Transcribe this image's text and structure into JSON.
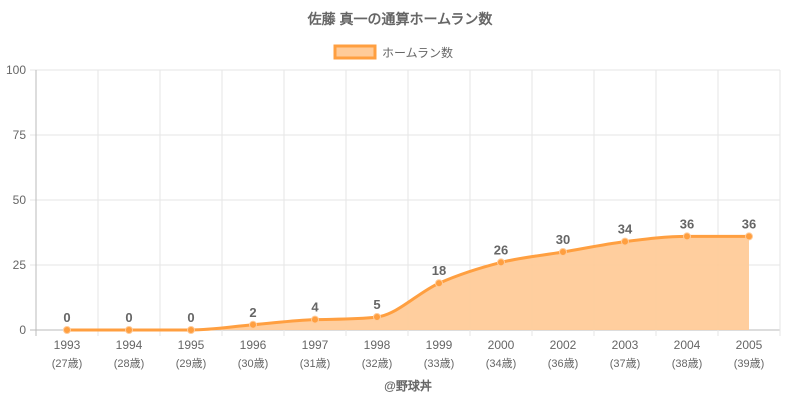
{
  "chart_data": {
    "type": "line",
    "title": "佐藤 真一の通算ホームラン数",
    "legend": {
      "label": "ホームラン数",
      "placement": "top"
    },
    "categories": [
      "1993",
      "1994",
      "1995",
      "1996",
      "1997",
      "1998",
      "1999",
      "2000",
      "2002",
      "2003",
      "2004",
      "2005"
    ],
    "ages": [
      "(27歳)",
      "(28歳)",
      "(29歳)",
      "(30歳)",
      "(31歳)",
      "(32歳)",
      "(33歳)",
      "(34歳)",
      "(36歳)",
      "(37歳)",
      "(38歳)",
      "(39歳)"
    ],
    "series": [
      {
        "name": "ホームラン数",
        "values": [
          0,
          0,
          0,
          2,
          4,
          5,
          18,
          26,
          30,
          34,
          36,
          36
        ]
      }
    ],
    "ylim": [
      0,
      100
    ],
    "yticks": [
      0,
      25,
      50,
      75,
      100
    ],
    "grid": true,
    "credit": "@野球丼",
    "colors": {
      "line": "#ff9f40",
      "fill": "#ffcb99",
      "text": "#666666",
      "grid": "#e6e6e6"
    }
  }
}
